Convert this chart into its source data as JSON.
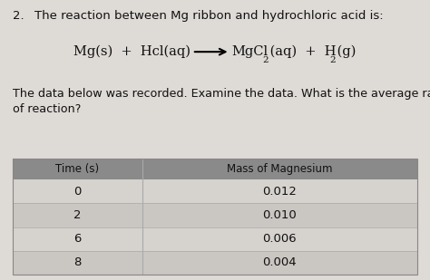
{
  "title_number": "2.",
  "title_text": " The reaction between Mg ribbon and hydrochloric acid is:",
  "body_text": "The data below was recorded. Examine the data. What is the average rate\nof reaction?",
  "col1_header": "Time (s)",
  "col2_header": "Mass of Magnesium",
  "rows": [
    [
      "0",
      "0.012"
    ],
    [
      "2",
      "0.010"
    ],
    [
      "6",
      "0.006"
    ],
    [
      "8",
      "0.004"
    ]
  ],
  "header_bg": "#8a8a8a",
  "row_colors": [
    "#d6d2ce",
    "#cac6c2",
    "#d6d2ce",
    "#cac6c2"
  ],
  "bg_color": "#dedad6",
  "text_color": "#111111",
  "col_split": 0.32
}
